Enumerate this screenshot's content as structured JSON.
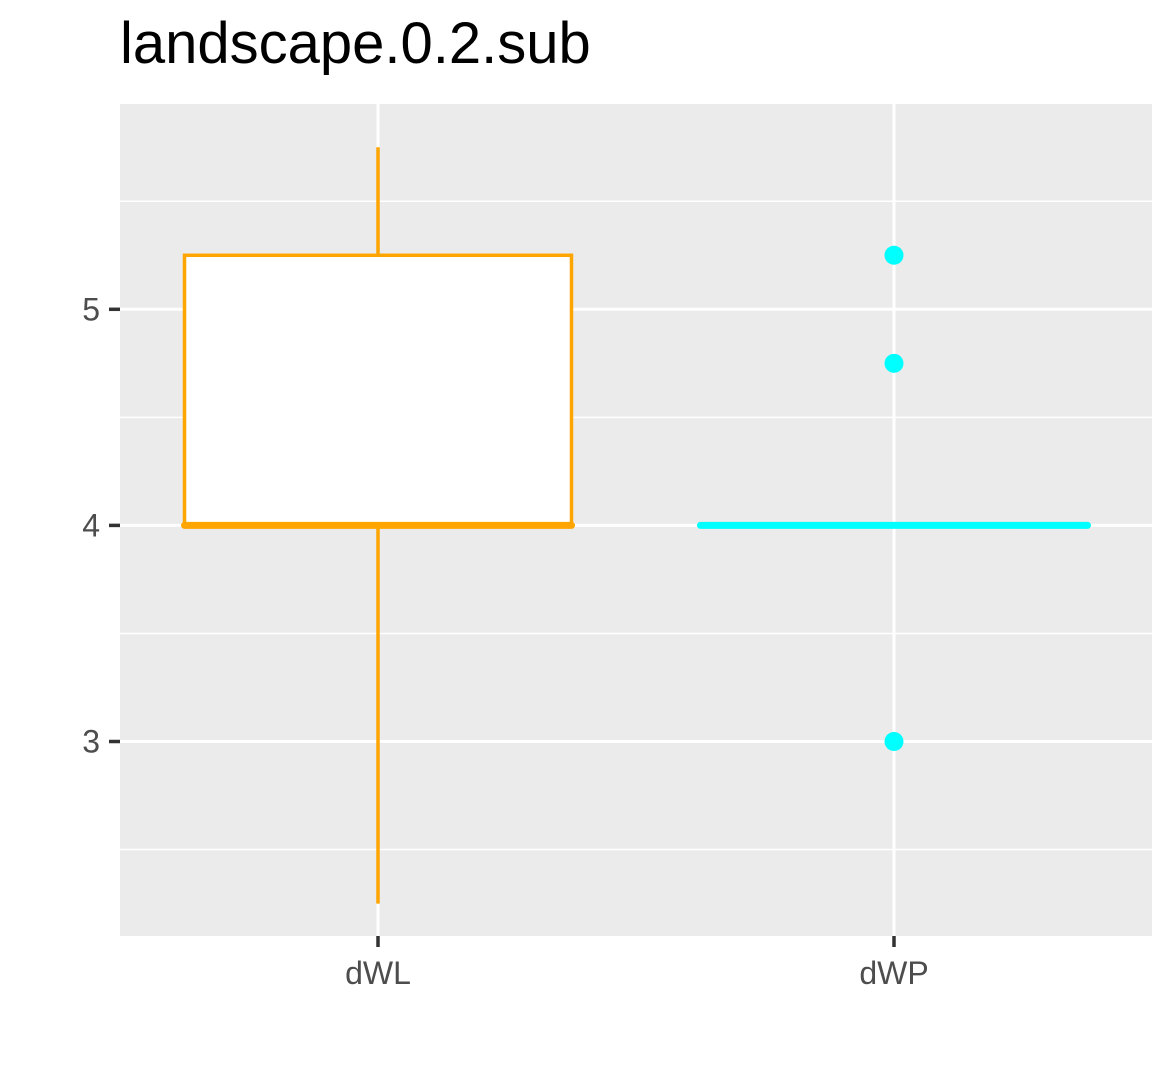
{
  "chart_data": {
    "type": "box",
    "title": "landscape.0.2.sub",
    "xlabel": "",
    "ylabel": "",
    "categories": [
      "dWL",
      "dWP"
    ],
    "ylim": [
      2.1,
      5.95
    ],
    "y_ticks": [
      3,
      4,
      5
    ],
    "y_tick_labels": [
      "3",
      "4",
      "5"
    ],
    "grid": true,
    "legend": "none",
    "panel_background": "#ebebeb",
    "series": [
      {
        "category": "dWL",
        "color": "#ffa500",
        "fill": "#ffffff",
        "whisker_low": 2.25,
        "q1": 4.0,
        "median": 4.0,
        "q3": 5.25,
        "whisker_high": 5.75,
        "outliers": []
      },
      {
        "category": "dWP",
        "color": "#00ffff",
        "fill": "#ffffff",
        "whisker_low": 4.0,
        "q1": 4.0,
        "median": 4.0,
        "q3": 4.0,
        "whisker_high": 4.0,
        "outliers": [
          5.25,
          4.75,
          3.0
        ]
      }
    ]
  }
}
